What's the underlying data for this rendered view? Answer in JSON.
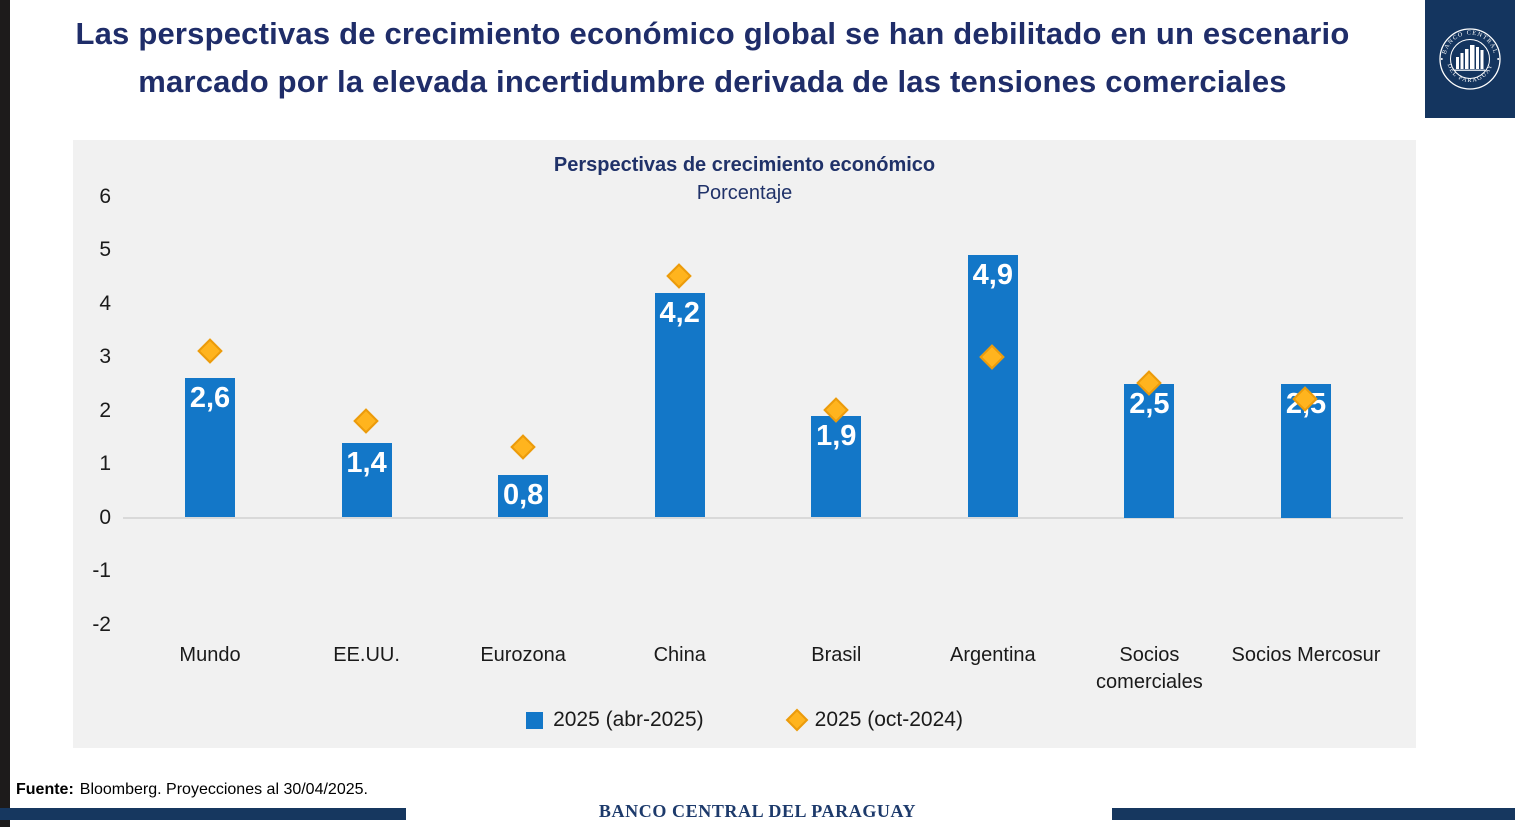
{
  "header": {
    "title_line1": "Las perspectivas de crecimiento económico global se han debilitado en un escenario",
    "title_line2": "marcado por la elevada incertidumbre derivada de las tensiones comerciales"
  },
  "logo": {
    "arc_top": "BANCO CENTRAL",
    "arc_bottom": "DEL PARAGUAY"
  },
  "chart_data": {
    "type": "bar",
    "title": "Perspectivas de crecimiento económico",
    "subtitle": "Porcentaje",
    "categories": [
      "Mundo",
      "EE.UU.",
      "Eurozona",
      "China",
      "Brasil",
      "Argentina",
      "Socios comerciales",
      "Socios Mercosur"
    ],
    "series": [
      {
        "name": "2025 (abr-2025)",
        "type": "bar",
        "color": "#1377c8",
        "values": [
          2.6,
          1.4,
          0.8,
          4.2,
          1.9,
          4.9,
          2.5,
          2.5
        ],
        "value_labels": [
          "2,6",
          "1,4",
          "0,8",
          "4,2",
          "1,9",
          "4,9",
          "2,5",
          "2,5"
        ]
      },
      {
        "name": "2025 (oct-2024)",
        "type": "scatter",
        "marker": "diamond",
        "color": "#ffb41e",
        "marker_border_color": "#eb9b0c",
        "values": [
          3.1,
          1.8,
          1.3,
          4.5,
          2.0,
          3.0,
          2.5,
          2.2
        ]
      }
    ],
    "ylim": [
      -2,
      6
    ],
    "yticks": [
      6,
      5,
      4,
      3,
      2,
      1,
      0,
      -1,
      -2
    ],
    "ytick_labels": [
      "6",
      "5",
      "4",
      "3",
      "2",
      "1",
      "0",
      "-1",
      "-2"
    ],
    "grid": false,
    "legend_position": "bottom-center"
  },
  "footer": {
    "source_label": "Fuente:",
    "source_text": "Bloomberg. Proyecciones al 30/04/2025.",
    "bank_name": "BANCO CENTRAL DEL PARAGUAY"
  },
  "colors": {
    "title_navy": "#1f2d69",
    "bar_blue": "#1377c8",
    "diamond_gold": "#ffb41e",
    "diamond_border": "#eb9b0c",
    "panel_gray": "#f1f1f1",
    "banner_navy": "#16375f",
    "logo_navy": "#14355f"
  }
}
